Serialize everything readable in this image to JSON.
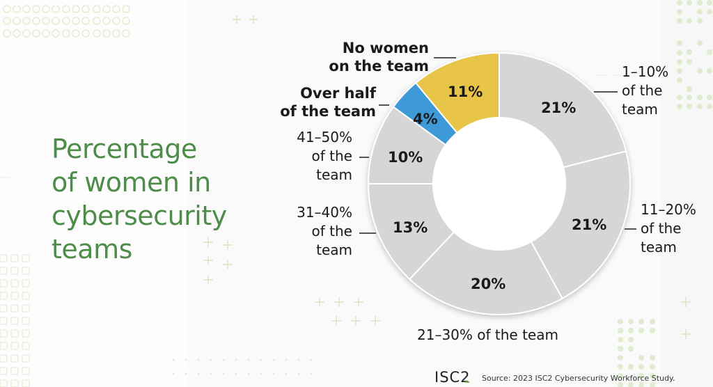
{
  "title_lines": [
    "Percentage",
    "of women in",
    "cybersecurity",
    "teams"
  ],
  "colors": {
    "title": "#4e8c4a",
    "gray_slice": "#d6d6d6",
    "highlight_yellow": "#e8c44a",
    "highlight_blue": "#3d9ad6",
    "label_text": "#1a1a1a",
    "accent_green": "#7ab648"
  },
  "labels": {
    "no_women": [
      "No women",
      "on the team"
    ],
    "over_half": [
      "Over half",
      "of the team"
    ],
    "r41_50": [
      "41–50%",
      "of the",
      "team"
    ],
    "r31_40": [
      "31–40%",
      "of the",
      "team"
    ],
    "r1_10": [
      "1–10%",
      "of the",
      "team"
    ],
    "r11_20": [
      "11–20%",
      "of the",
      "team"
    ],
    "r21_30": "21–30% of the team"
  },
  "slice_values": {
    "r1_10": "21%",
    "r11_20": "21%",
    "r21_30": "20%",
    "r31_40": "13%",
    "r41_50": "10%",
    "over_half": "4%",
    "no_women": "11%"
  },
  "footer": {
    "logo": "ISC2",
    "source": "Source: 2023 ISC2 Cybersecurity Workforce Study."
  },
  "chart_data": {
    "type": "pie",
    "variant": "donut",
    "title": "Percentage of women in cybersecurity teams",
    "categories": [
      "1–10% of the team",
      "11–20% of the team",
      "21–30% of the team",
      "31–40% of the team",
      "41–50% of the team",
      "Over half of the team",
      "No women on the team"
    ],
    "values": [
      21,
      21,
      20,
      13,
      10,
      4,
      11
    ],
    "unit": "%",
    "highlighted": {
      "Over half of the team": "#3d9ad6",
      "No women on the team": "#e8c44a"
    },
    "default_slice_color": "#d6d6d6",
    "start_angle": "12 o'clock, clockwise",
    "source": "Source: 2023 ISC2 Cybersecurity Workforce Study."
  }
}
